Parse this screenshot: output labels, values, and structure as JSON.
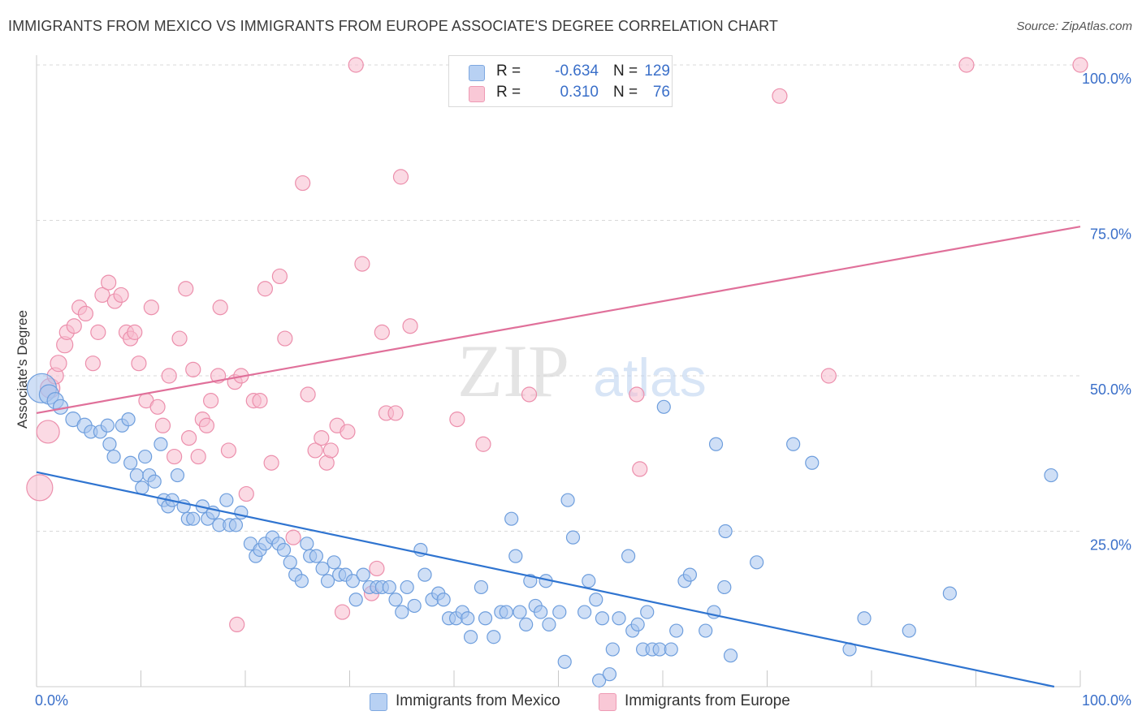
{
  "title": "IMMIGRANTS FROM MEXICO VS IMMIGRANTS FROM EUROPE ASSOCIATE'S DEGREE CORRELATION CHART",
  "source": "Source: ZipAtlas.com",
  "watermark": {
    "zip": "ZIP",
    "atlas": "atlas"
  },
  "legend": {
    "r_label": "R =",
    "n_label": "N =",
    "rows": [
      {
        "r": "-0.634",
        "n": "129",
        "color": "#aac6ef"
      },
      {
        "r": "0.310",
        "n": "76",
        "color": "#f6b8ca"
      }
    ]
  },
  "colors": {
    "mexico_fill": "#a8c5ee",
    "mexico_stroke": "#6e9edd",
    "mexico_line": "#2f74d0",
    "europe_fill": "#f7bccd",
    "europe_stroke": "#ec8fac",
    "europe_line": "#e0709a",
    "tick_label": "#3a6fc9",
    "grid": "#d9d9d9"
  },
  "chart_data": {
    "type": "scatter",
    "title": "IMMIGRANTS FROM MEXICO VS IMMIGRANTS FROM EUROPE ASSOCIATE'S DEGREE CORRELATION CHART",
    "xlabel": "",
    "ylabel": "Associate's Degree",
    "xlim": [
      0,
      100
    ],
    "ylim": [
      0,
      100
    ],
    "x_tick_labels": [
      "0.0%",
      "100.0%"
    ],
    "y_tick_labels": [
      "25.0%",
      "50.0%",
      "75.0%",
      "100.0%"
    ],
    "y_ticks": [
      25,
      50,
      75,
      100
    ],
    "grid": true,
    "legend_position": "top-center",
    "series": [
      {
        "name": "Immigrants from Mexico",
        "r": -0.634,
        "n": 129,
        "trend": {
          "x": [
            0,
            97.5
          ],
          "y": [
            34.5,
            0
          ]
        },
        "points": [
          [
            0.5,
            48,
            18
          ],
          [
            1.2,
            47,
            12
          ],
          [
            1.8,
            46,
            10
          ],
          [
            2.3,
            45,
            9
          ],
          [
            3.5,
            43,
            9
          ],
          [
            4.6,
            42,
            9
          ],
          [
            5.2,
            41,
            8
          ],
          [
            6.1,
            41,
            8
          ],
          [
            6.8,
            42,
            8
          ],
          [
            7.0,
            39,
            8
          ],
          [
            7.4,
            37,
            8
          ],
          [
            8.2,
            42,
            8
          ],
          [
            8.8,
            43,
            8
          ],
          [
            9.0,
            36,
            8
          ],
          [
            9.6,
            34,
            8
          ],
          [
            10.1,
            32,
            8
          ],
          [
            10.4,
            37,
            8
          ],
          [
            10.8,
            34,
            8
          ],
          [
            11.3,
            33,
            8
          ],
          [
            11.9,
            39,
            8
          ],
          [
            12.2,
            30,
            8
          ],
          [
            12.6,
            29,
            8
          ],
          [
            13.0,
            30,
            8
          ],
          [
            13.5,
            34,
            8
          ],
          [
            14.1,
            29,
            8
          ],
          [
            14.5,
            27,
            8
          ],
          [
            15.0,
            27,
            8
          ],
          [
            15.9,
            29,
            8
          ],
          [
            16.4,
            27,
            8
          ],
          [
            16.9,
            28,
            8
          ],
          [
            17.5,
            26,
            8
          ],
          [
            18.2,
            30,
            8
          ],
          [
            18.5,
            26,
            8
          ],
          [
            19.1,
            26,
            8
          ],
          [
            19.6,
            28,
            8
          ],
          [
            20.5,
            23,
            8
          ],
          [
            21.0,
            21,
            8
          ],
          [
            21.4,
            22,
            8
          ],
          [
            21.9,
            23,
            8
          ],
          [
            22.6,
            24,
            8
          ],
          [
            23.2,
            23,
            8
          ],
          [
            23.7,
            22,
            8
          ],
          [
            24.3,
            20,
            8
          ],
          [
            24.8,
            18,
            8
          ],
          [
            25.4,
            17,
            8
          ],
          [
            25.9,
            23,
            8
          ],
          [
            26.2,
            21,
            8
          ],
          [
            26.8,
            21,
            8
          ],
          [
            27.4,
            19,
            8
          ],
          [
            27.9,
            17,
            8
          ],
          [
            28.5,
            20,
            8
          ],
          [
            29.0,
            18,
            8
          ],
          [
            29.6,
            18,
            8
          ],
          [
            30.3,
            17,
            8
          ],
          [
            30.6,
            14,
            8
          ],
          [
            31.3,
            18,
            8
          ],
          [
            31.9,
            16,
            8
          ],
          [
            32.6,
            16,
            8
          ],
          [
            33.1,
            16,
            8
          ],
          [
            33.8,
            16,
            8
          ],
          [
            34.4,
            14,
            8
          ],
          [
            35.0,
            12,
            8
          ],
          [
            35.5,
            16,
            8
          ],
          [
            36.2,
            13,
            8
          ],
          [
            36.8,
            22,
            8
          ],
          [
            37.2,
            18,
            8
          ],
          [
            37.9,
            14,
            8
          ],
          [
            38.5,
            15,
            8
          ],
          [
            39.0,
            14,
            8
          ],
          [
            39.5,
            11,
            8
          ],
          [
            40.2,
            11,
            8
          ],
          [
            40.8,
            12,
            8
          ],
          [
            41.3,
            11,
            8
          ],
          [
            41.6,
            8,
            8
          ],
          [
            42.6,
            16,
            8
          ],
          [
            43.0,
            11,
            8
          ],
          [
            43.8,
            8,
            8
          ],
          [
            44.5,
            12,
            8
          ],
          [
            45.0,
            12,
            8
          ],
          [
            45.5,
            27,
            8
          ],
          [
            45.9,
            21,
            8
          ],
          [
            46.3,
            12,
            8
          ],
          [
            46.9,
            10,
            8
          ],
          [
            47.3,
            17,
            8
          ],
          [
            47.8,
            13,
            8
          ],
          [
            48.3,
            12,
            8
          ],
          [
            48.8,
            17,
            8
          ],
          [
            49.1,
            10,
            8
          ],
          [
            50.1,
            12,
            8
          ],
          [
            50.6,
            4,
            8
          ],
          [
            50.9,
            30,
            8
          ],
          [
            51.4,
            24,
            8
          ],
          [
            52.5,
            12,
            8
          ],
          [
            52.9,
            17,
            8
          ],
          [
            53.6,
            14,
            8
          ],
          [
            53.9,
            1,
            8
          ],
          [
            54.2,
            11,
            8
          ],
          [
            54.9,
            2,
            8
          ],
          [
            55.2,
            6,
            8
          ],
          [
            55.8,
            11,
            8
          ],
          [
            56.7,
            21,
            8
          ],
          [
            57.1,
            9,
            8
          ],
          [
            57.6,
            10,
            8
          ],
          [
            58.1,
            6,
            8
          ],
          [
            58.5,
            12,
            8
          ],
          [
            59.0,
            6,
            8
          ],
          [
            59.7,
            6,
            8
          ],
          [
            60.1,
            45,
            8
          ],
          [
            60.8,
            6,
            8
          ],
          [
            61.3,
            9,
            8
          ],
          [
            62.1,
            17,
            8
          ],
          [
            62.6,
            18,
            8
          ],
          [
            64.1,
            9,
            8
          ],
          [
            64.9,
            12,
            8
          ],
          [
            65.1,
            39,
            8
          ],
          [
            65.9,
            16,
            8
          ],
          [
            66.0,
            25,
            8
          ],
          [
            66.5,
            5,
            8
          ],
          [
            69.0,
            20,
            8
          ],
          [
            72.5,
            39,
            8
          ],
          [
            74.3,
            36,
            8
          ],
          [
            77.9,
            6,
            8
          ],
          [
            79.3,
            11,
            8
          ],
          [
            83.6,
            9,
            8
          ],
          [
            87.5,
            15,
            8
          ],
          [
            97.2,
            34,
            8
          ]
        ]
      },
      {
        "name": "Immigrants from Europe",
        "r": 0.31,
        "n": 76,
        "trend": {
          "x": [
            0,
            100
          ],
          "y": [
            44,
            74
          ]
        },
        "points": [
          [
            0.3,
            32,
            16
          ],
          [
            1.1,
            41,
            14
          ],
          [
            1.3,
            48,
            12
          ],
          [
            1.8,
            50,
            10
          ],
          [
            2.1,
            52,
            10
          ],
          [
            2.7,
            55,
            10
          ],
          [
            2.9,
            57,
            9
          ],
          [
            3.6,
            58,
            9
          ],
          [
            4.1,
            61,
            9
          ],
          [
            4.7,
            60,
            9
          ],
          [
            5.4,
            52,
            9
          ],
          [
            5.9,
            57,
            9
          ],
          [
            6.3,
            63,
            9
          ],
          [
            6.9,
            65,
            9
          ],
          [
            7.5,
            62,
            9
          ],
          [
            8.1,
            63,
            9
          ],
          [
            8.6,
            57,
            9
          ],
          [
            9.0,
            56,
            9
          ],
          [
            9.4,
            57,
            9
          ],
          [
            9.8,
            52,
            9
          ],
          [
            10.5,
            46,
            9
          ],
          [
            11.0,
            61,
            9
          ],
          [
            11.6,
            45,
            9
          ],
          [
            12.1,
            42,
            9
          ],
          [
            12.7,
            50,
            9
          ],
          [
            13.2,
            37,
            9
          ],
          [
            13.7,
            56,
            9
          ],
          [
            14.3,
            64,
            9
          ],
          [
            14.6,
            40,
            9
          ],
          [
            15.0,
            51,
            9
          ],
          [
            15.5,
            37,
            9
          ],
          [
            15.9,
            43,
            9
          ],
          [
            16.3,
            42,
            9
          ],
          [
            16.7,
            46,
            9
          ],
          [
            17.4,
            50,
            9
          ],
          [
            17.6,
            61,
            9
          ],
          [
            18.4,
            38,
            9
          ],
          [
            19.0,
            49,
            9
          ],
          [
            19.2,
            10,
            9
          ],
          [
            19.6,
            50,
            9
          ],
          [
            20.1,
            31,
            9
          ],
          [
            20.8,
            46,
            9
          ],
          [
            21.4,
            46,
            9
          ],
          [
            21.9,
            64,
            9
          ],
          [
            22.5,
            36,
            9
          ],
          [
            23.3,
            66,
            9
          ],
          [
            23.8,
            56,
            9
          ],
          [
            24.6,
            24,
            9
          ],
          [
            25.5,
            81,
            9
          ],
          [
            26.0,
            47,
            9
          ],
          [
            26.7,
            38,
            9
          ],
          [
            27.3,
            40,
            9
          ],
          [
            27.8,
            36,
            9
          ],
          [
            28.2,
            38,
            9
          ],
          [
            28.8,
            42,
            9
          ],
          [
            29.3,
            12,
            9
          ],
          [
            29.8,
            41,
            9
          ],
          [
            30.6,
            100,
            9
          ],
          [
            31.2,
            68,
            9
          ],
          [
            32.1,
            15,
            9
          ],
          [
            32.6,
            19,
            9
          ],
          [
            33.1,
            57,
            9
          ],
          [
            33.5,
            44,
            9
          ],
          [
            34.4,
            44,
            9
          ],
          [
            34.9,
            82,
            9
          ],
          [
            35.8,
            58,
            9
          ],
          [
            40.3,
            43,
            9
          ],
          [
            42.8,
            39,
            9
          ],
          [
            47.2,
            47,
            9
          ],
          [
            57.5,
            47,
            9
          ],
          [
            57.8,
            35,
            9
          ],
          [
            71.2,
            95,
            9
          ],
          [
            75.9,
            50,
            9
          ],
          [
            89.1,
            100,
            9
          ],
          [
            100.0,
            100,
            9
          ]
        ]
      }
    ]
  },
  "bottom_legend": [
    {
      "label": "Immigrants from Mexico"
    },
    {
      "label": "Immigrants from Europe"
    }
  ]
}
